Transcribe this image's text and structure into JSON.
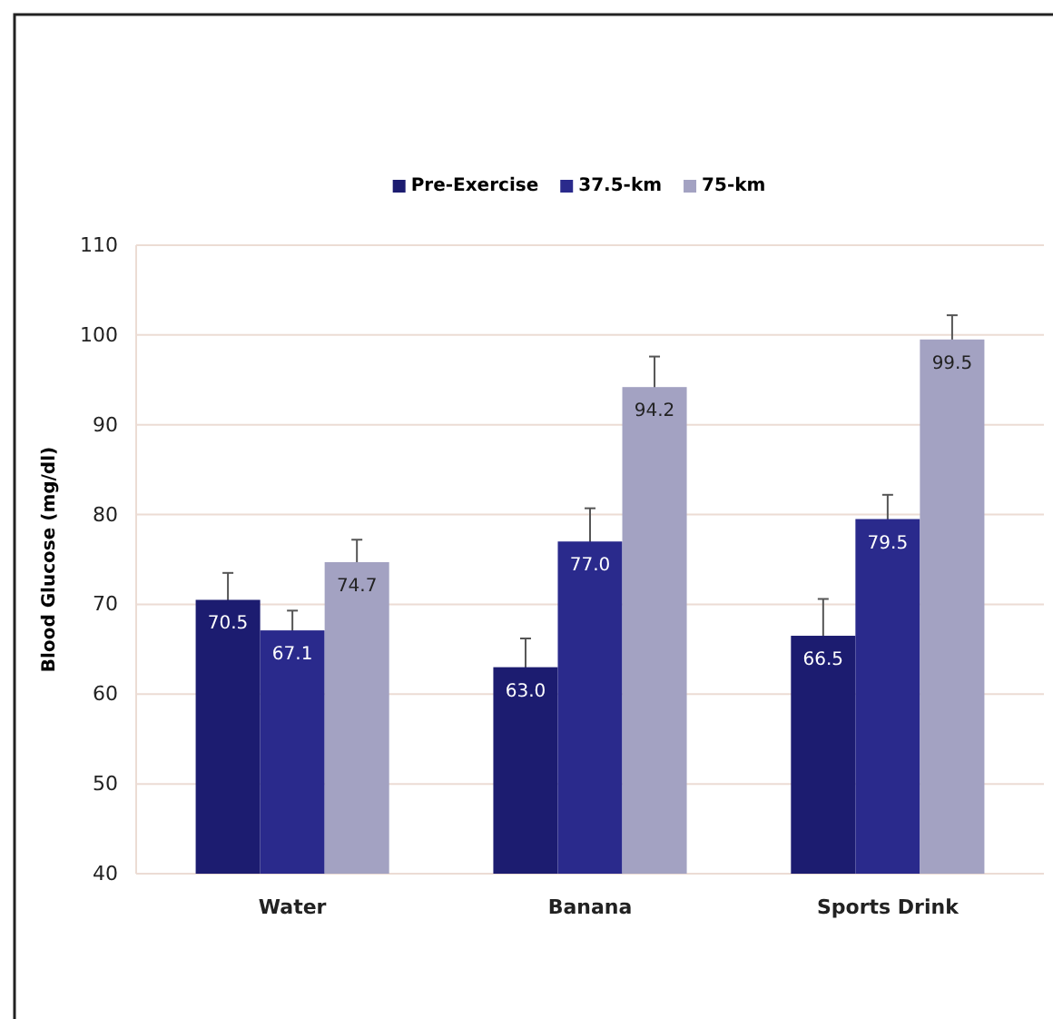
{
  "chart_data": {
    "type": "bar",
    "ylabel": "Blood Glucose (mg/dl)",
    "categories": [
      "Water",
      "Banana",
      "Sports Drink"
    ],
    "series": [
      {
        "name": "Pre-Exercise",
        "color": "#1c1c70",
        "values": [
          70.5,
          63.0,
          66.5
        ],
        "value_labels": [
          "70.5",
          "63.0",
          "66.5"
        ],
        "errors": [
          3,
          3.2,
          4.1
        ]
      },
      {
        "name": "37.5-km",
        "color": "#2a2a8c",
        "values": [
          67.1,
          77.0,
          79.5
        ],
        "value_labels": [
          "67.1",
          "77.0",
          "79.5"
        ],
        "errors": [
          2.2,
          3.7,
          2.7
        ]
      },
      {
        "name": "75-km",
        "color": "#a3a2c2",
        "values": [
          74.7,
          94.2,
          99.5
        ],
        "value_labels": [
          "74.7",
          "94.2",
          "99.5"
        ],
        "errors": [
          2.5,
          3.4,
          2.7
        ]
      }
    ],
    "ylim": [
      40,
      110
    ],
    "yticks": [
      40,
      50,
      60,
      70,
      80,
      90,
      100,
      110
    ],
    "grid": "y",
    "legend": "top"
  }
}
